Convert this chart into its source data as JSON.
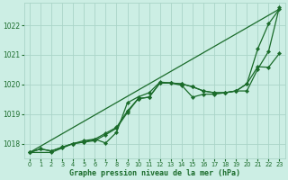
{
  "bg_color": "#cceee4",
  "grid_color": "#aad4c8",
  "line_color": "#1a6b2a",
  "xlabel": "Graphe pression niveau de la mer (hPa)",
  "ylim": [
    1017.5,
    1022.75
  ],
  "xlim": [
    -0.5,
    23.5
  ],
  "yticks": [
    1018,
    1019,
    1020,
    1021,
    1022
  ],
  "xticks": [
    0,
    1,
    2,
    3,
    4,
    5,
    6,
    7,
    8,
    9,
    10,
    11,
    12,
    13,
    14,
    15,
    16,
    17,
    18,
    19,
    20,
    21,
    22,
    23
  ],
  "line1_x": [
    0,
    1,
    2,
    3,
    4,
    5,
    6,
    7,
    8,
    9,
    10,
    11,
    12,
    13,
    14,
    15,
    16,
    17,
    18,
    19,
    20,
    21,
    22,
    23
  ],
  "line1_y": [
    1017.7,
    1017.82,
    1017.75,
    1017.88,
    1018.0,
    1018.05,
    1018.1,
    1018.3,
    1018.52,
    1019.05,
    1019.52,
    1019.57,
    1020.05,
    1020.05,
    1020.02,
    1019.92,
    1019.78,
    1019.72,
    1019.72,
    1019.78,
    1020.02,
    1021.2,
    1022.05,
    1022.55
  ],
  "line2_x": [
    0,
    1,
    2,
    3,
    4,
    5,
    6,
    7,
    8,
    9,
    10,
    11,
    12,
    13,
    14,
    15,
    16,
    17,
    18,
    19,
    20,
    21,
    22,
    23
  ],
  "line2_y": [
    1017.7,
    1017.82,
    1017.75,
    1017.88,
    1018.0,
    1018.05,
    1018.15,
    1018.35,
    1018.55,
    1019.1,
    1019.52,
    1019.57,
    1020.05,
    1020.05,
    1020.02,
    1019.92,
    1019.78,
    1019.72,
    1019.72,
    1019.78,
    1020.02,
    1020.6,
    1020.58,
    1021.05
  ],
  "line3_x": [
    0,
    2,
    3,
    4,
    5,
    6,
    7,
    8,
    9,
    10,
    11,
    12,
    13,
    14,
    15,
    16,
    17,
    18,
    19,
    20,
    21,
    22,
    23
  ],
  "line3_y": [
    1017.7,
    1017.7,
    1017.85,
    1018.0,
    1018.1,
    1018.15,
    1018.02,
    1018.38,
    1019.38,
    1019.58,
    1019.72,
    1020.08,
    1020.05,
    1019.97,
    1019.57,
    1019.67,
    1019.67,
    1019.72,
    1019.78,
    1019.78,
    1020.52,
    1021.12,
    1022.62
  ],
  "line4_x": [
    0,
    23
  ],
  "line4_y": [
    1017.7,
    1022.55
  ],
  "marker": "D",
  "markersize": 2.2,
  "linewidth": 0.9
}
